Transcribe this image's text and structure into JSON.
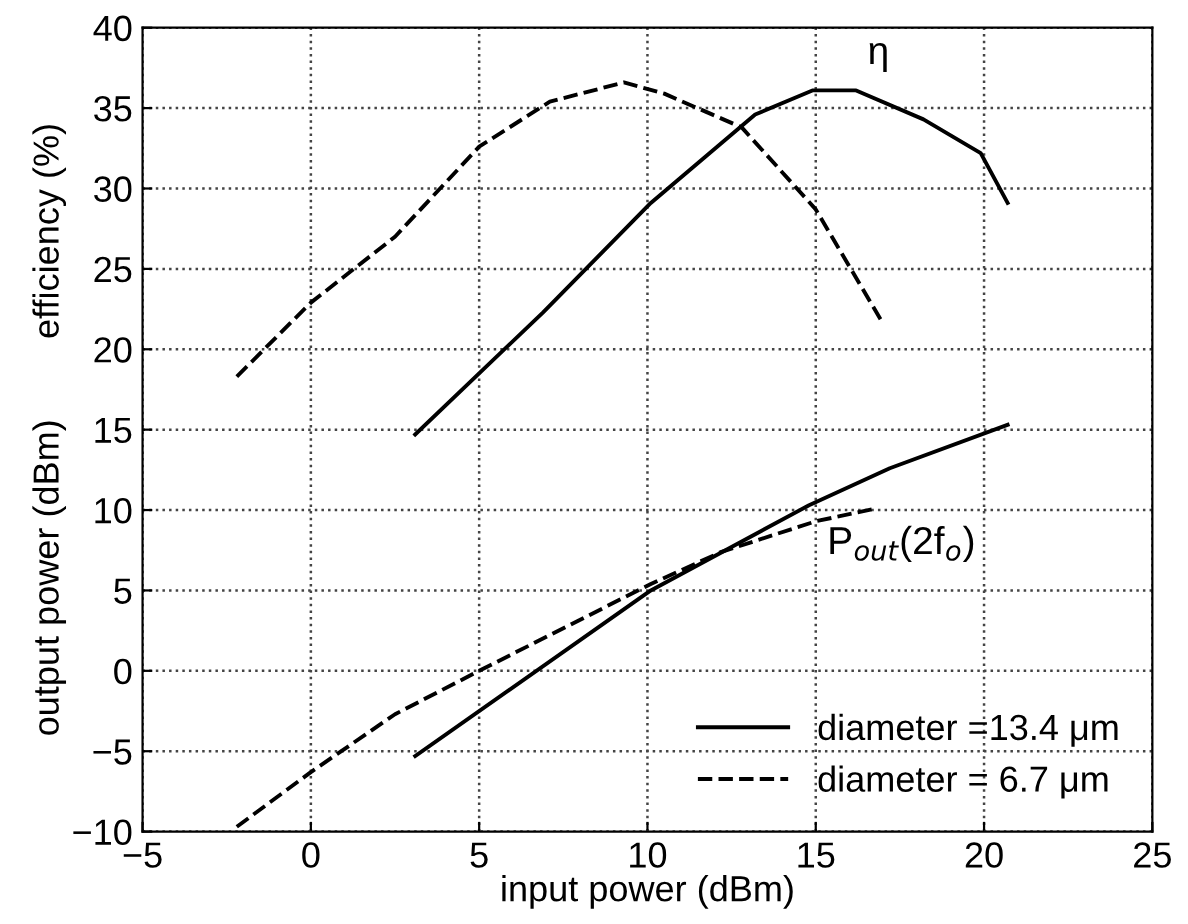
{
  "chart_data": {
    "type": "line",
    "xlabel": "input power (dBm)",
    "ylabel": "output power (dBm)        efficiency (%)",
    "xlim": [
      -5,
      25
    ],
    "xticks": [
      -5,
      0,
      5,
      10,
      15,
      20,
      25
    ],
    "ylim": [
      -10,
      40
    ],
    "yticks": [
      -10,
      -5,
      0,
      5,
      10,
      15,
      20,
      25,
      30,
      35,
      40
    ],
    "grid": true,
    "legend": "bottom right",
    "marker": "none",
    "series": [
      {
        "name": "diameter =13.4 μm",
        "color": "#000000",
        "line_style": "solid",
        "x": [
          3.1,
          6.9,
          10.1,
          13.2,
          14.9,
          16.2,
          18.2,
          19.9,
          20.7
        ],
        "values": [
          14.7,
          22.3,
          29.1,
          34.6,
          36.1,
          36.1,
          34.3,
          32.2,
          29.1
        ]
      },
      {
        "name": "diameter = 6.7 μm",
        "color": "#000000",
        "line_style": "dashed",
        "x": [
          -2.2,
          0,
          2.5,
          5,
          7.1,
          9.3,
          10.5,
          12.8,
          15,
          17
        ],
        "values": [
          18.3,
          22.9,
          27.0,
          32.6,
          35.4,
          36.6,
          35.9,
          33.8,
          28.7,
          21.6
        ]
      },
      {
        "color": "#000000",
        "line_style": "solid",
        "x": [
          3.1,
          10.1,
          14.8,
          17.2,
          20.7
        ],
        "values": [
          -5.3,
          5.0,
          10.3,
          12.6,
          15.3
        ]
      },
      {
        "color": "#000000",
        "line_style": "dashed",
        "x": [
          -2.2,
          0,
          2.5,
          5,
          10.1,
          12.2,
          15,
          16.8
        ],
        "values": [
          -9.7,
          -6.3,
          -2.7,
          0,
          5.4,
          7.4,
          9.3,
          10.1
        ]
      }
    ],
    "annotations": [
      "η",
      "P$_{out}$(2f$_{o}$)"
    ]
  }
}
